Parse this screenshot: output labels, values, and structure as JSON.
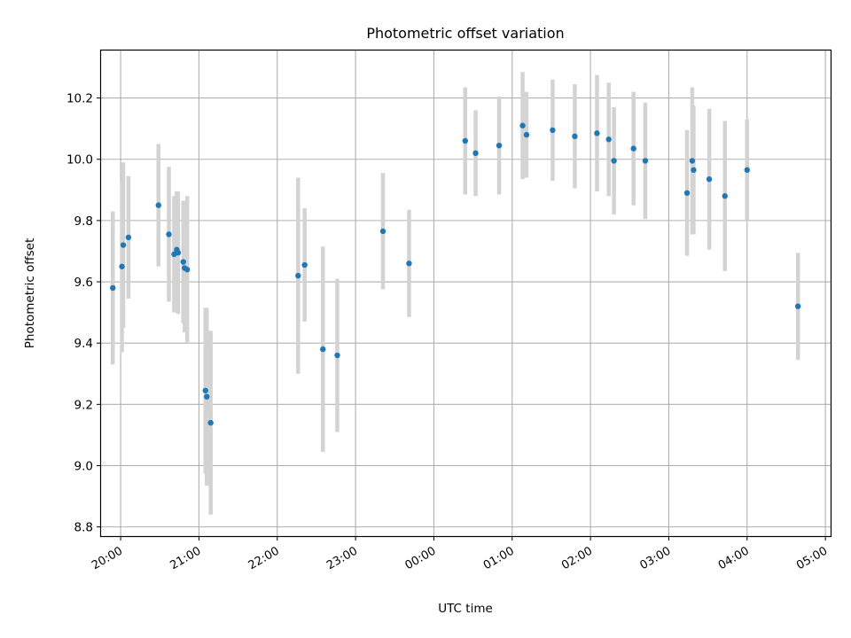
{
  "chart_data": {
    "type": "scatter",
    "title": "Photometric offset variation",
    "xlabel": "UTC time",
    "ylabel": "Photometric offset",
    "x_ticks": [
      "20:00",
      "21:00",
      "22:00",
      "23:00",
      "00:00",
      "01:00",
      "02:00",
      "03:00",
      "04:00",
      "05:00"
    ],
    "y_ticks": [
      "8.8",
      "9.0",
      "9.2",
      "9.4",
      "9.6",
      "9.8",
      "10.0",
      "10.2"
    ],
    "xlim": [
      "19:45",
      "05:04"
    ],
    "ylim": [
      8.77,
      10.355
    ],
    "grid": true,
    "colors": {
      "point": "#1f77b4",
      "errorbar": "#d3d3d3",
      "grid": "#b0b0b0"
    },
    "points": [
      {
        "x": "19:54",
        "y": 9.58,
        "yerr": 0.25
      },
      {
        "x": "20:01",
        "y": 9.65,
        "yerr": 0.28
      },
      {
        "x": "20:02",
        "y": 9.72,
        "yerr": 0.27
      },
      {
        "x": "20:06",
        "y": 9.745,
        "yerr": 0.2
      },
      {
        "x": "20:29",
        "y": 9.85,
        "yerr": 0.2
      },
      {
        "x": "20:37",
        "y": 9.755,
        "yerr": 0.22
      },
      {
        "x": "20:41",
        "y": 9.69,
        "yerr": 0.19
      },
      {
        "x": "20:43",
        "y": 9.705,
        "yerr": 0.19
      },
      {
        "x": "20:44",
        "y": 9.695,
        "yerr": 0.2
      },
      {
        "x": "20:48",
        "y": 9.665,
        "yerr": 0.2
      },
      {
        "x": "20:49",
        "y": 9.645,
        "yerr": 0.21
      },
      {
        "x": "20:51",
        "y": 9.64,
        "yerr": 0.24
      },
      {
        "x": "21:05",
        "y": 9.245,
        "yerr": 0.27
      },
      {
        "x": "21:06",
        "y": 9.225,
        "yerr": 0.29
      },
      {
        "x": "21:09",
        "y": 9.14,
        "yerr": 0.3
      },
      {
        "x": "22:16",
        "y": 9.62,
        "yerr": 0.32
      },
      {
        "x": "22:21",
        "y": 9.655,
        "yerr": 0.185
      },
      {
        "x": "22:35",
        "y": 9.38,
        "yerr": 0.335
      },
      {
        "x": "22:46",
        "y": 9.36,
        "yerr": 0.25
      },
      {
        "x": "23:21",
        "y": 9.765,
        "yerr": 0.19
      },
      {
        "x": "23:41",
        "y": 9.66,
        "yerr": 0.175
      },
      {
        "x": "00:24",
        "y": 10.06,
        "yerr": 0.175
      },
      {
        "x": "00:32",
        "y": 10.02,
        "yerr": 0.14
      },
      {
        "x": "00:50",
        "y": 10.045,
        "yerr": 0.16
      },
      {
        "x": "01:08",
        "y": 10.11,
        "yerr": 0.175
      },
      {
        "x": "01:11",
        "y": 10.08,
        "yerr": 0.14
      },
      {
        "x": "01:31",
        "y": 10.095,
        "yerr": 0.165
      },
      {
        "x": "01:48",
        "y": 10.075,
        "yerr": 0.17
      },
      {
        "x": "02:05",
        "y": 10.085,
        "yerr": 0.19
      },
      {
        "x": "02:14",
        "y": 10.065,
        "yerr": 0.185
      },
      {
        "x": "02:18",
        "y": 9.995,
        "yerr": 0.175
      },
      {
        "x": "02:33",
        "y": 10.035,
        "yerr": 0.185
      },
      {
        "x": "02:42",
        "y": 9.995,
        "yerr": 0.19
      },
      {
        "x": "03:14",
        "y": 9.89,
        "yerr": 0.205
      },
      {
        "x": "03:18",
        "y": 9.995,
        "yerr": 0.24
      },
      {
        "x": "03:19",
        "y": 9.965,
        "yerr": 0.21
      },
      {
        "x": "03:31",
        "y": 9.935,
        "yerr": 0.23
      },
      {
        "x": "03:43",
        "y": 9.88,
        "yerr": 0.245
      },
      {
        "x": "04:00",
        "y": 9.965,
        "yerr": 0.165
      },
      {
        "x": "04:39",
        "y": 9.52,
        "yerr": 0.175
      }
    ]
  }
}
